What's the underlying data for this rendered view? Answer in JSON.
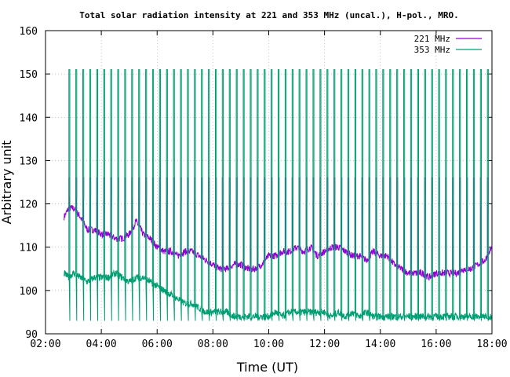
{
  "chart_data": {
    "type": "line",
    "title": "Total solar radiation intensity at 221 and 353 MHz (uncal.), H-pol., MRO.",
    "xlabel": "Time (UT)",
    "ylabel": "Arbitrary unit",
    "xlim": [
      "02:00",
      "18:00"
    ],
    "ylim": [
      90,
      160
    ],
    "x_ticks": [
      "02:00",
      "04:00",
      "06:00",
      "08:00",
      "10:00",
      "12:00",
      "14:00",
      "16:00",
      "18:00"
    ],
    "y_ticks": [
      "90",
      "100",
      "110",
      "120",
      "130",
      "140",
      "150",
      "160"
    ],
    "grid": true,
    "legend": "top-right",
    "series": [
      {
        "name": "221 MHz",
        "color": "#9400d3",
        "x": [
          "02:40",
          "02:50",
          "03:00",
          "03:15",
          "03:30",
          "03:45",
          "04:00",
          "04:15",
          "04:30",
          "04:45",
          "05:00",
          "05:15",
          "05:30",
          "05:45",
          "06:00",
          "06:15",
          "06:30",
          "06:45",
          "07:00",
          "07:15",
          "07:30",
          "07:45",
          "08:00",
          "08:15",
          "08:30",
          "08:45",
          "09:00",
          "09:15",
          "09:30",
          "09:45",
          "10:00",
          "10:15",
          "10:30",
          "10:45",
          "11:00",
          "11:15",
          "11:30",
          "11:45",
          "12:00",
          "12:15",
          "12:30",
          "12:45",
          "13:00",
          "13:15",
          "13:30",
          "13:45",
          "14:00",
          "14:15",
          "14:30",
          "14:45",
          "15:00",
          "15:15",
          "15:30",
          "15:45",
          "16:00",
          "16:15",
          "16:30",
          "16:45",
          "17:00",
          "17:15",
          "17:30",
          "17:45",
          "18:00"
        ],
        "values": [
          117,
          119,
          119,
          117,
          114,
          114,
          113,
          113,
          112,
          112,
          113,
          116,
          113,
          112,
          110,
          109,
          109,
          108,
          109,
          109,
          108,
          107,
          106,
          105,
          105,
          106,
          106,
          105,
          105,
          106,
          108,
          108,
          109,
          109,
          110,
          109,
          110,
          108,
          109,
          110,
          110,
          109,
          108,
          108,
          107,
          109,
          108,
          108,
          106,
          105,
          104,
          104,
          104,
          103,
          104,
          104,
          104,
          104,
          105,
          105,
          106,
          107,
          110
        ],
        "spikes": {
          "interval_minutes": 15,
          "high": 126,
          "low": 122
        }
      },
      {
        "name": "353 MHz",
        "color": "#009e73",
        "x": [
          "02:40",
          "02:50",
          "03:00",
          "03:15",
          "03:30",
          "03:45",
          "04:00",
          "04:15",
          "04:30",
          "04:45",
          "05:00",
          "05:15",
          "05:30",
          "05:45",
          "06:00",
          "06:15",
          "06:30",
          "06:45",
          "07:00",
          "07:15",
          "07:30",
          "07:45",
          "08:00",
          "08:15",
          "08:30",
          "08:45",
          "09:00",
          "09:15",
          "09:30",
          "09:45",
          "10:00",
          "10:15",
          "10:30",
          "10:45",
          "11:00",
          "11:15",
          "11:30",
          "11:45",
          "12:00",
          "12:15",
          "12:30",
          "12:45",
          "13:00",
          "13:15",
          "13:30",
          "13:45",
          "14:00",
          "14:15",
          "14:30",
          "14:45",
          "15:00",
          "15:15",
          "15:30",
          "15:45",
          "16:00",
          "16:15",
          "16:30",
          "16:45",
          "17:00",
          "17:15",
          "17:30",
          "17:45",
          "18:00"
        ],
        "values": [
          104,
          103,
          104,
          103,
          102,
          103,
          103,
          103,
          104,
          103,
          102,
          103,
          103,
          102,
          101,
          100,
          99,
          98,
          97,
          97,
          96,
          95,
          95,
          95,
          95,
          94,
          94,
          94,
          94,
          94,
          94,
          95,
          94,
          95,
          95,
          95,
          95,
          95,
          95,
          94,
          95,
          94,
          95,
          94,
          95,
          94,
          94,
          94,
          94,
          94,
          94,
          94,
          94,
          94,
          94,
          94,
          94,
          94,
          94,
          94,
          94,
          94,
          94
        ],
        "spikes": {
          "interval_minutes": 15,
          "high": 151,
          "low": 93
        }
      }
    ]
  }
}
